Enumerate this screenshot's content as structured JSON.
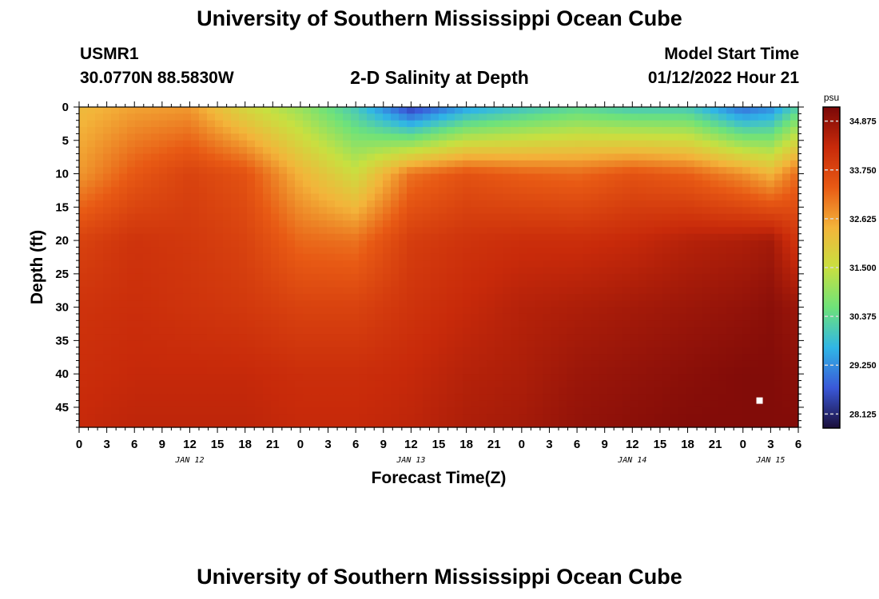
{
  "header": {
    "title": "University of Southern Mississippi Ocean Cube",
    "station_id": "USMR1",
    "coords": "30.0770N  88.5830W",
    "plot_title": "2-D Salinity at Depth",
    "start_label": "Model Start Time",
    "start_value": "01/12/2022 Hour 21"
  },
  "footer": {
    "title": "University of Southern Mississippi Ocean Cube"
  },
  "colors": {
    "scale": [
      "#1a0e3a",
      "#3a58d8",
      "#30b6e6",
      "#6ee27a",
      "#c8e040",
      "#f3b43a",
      "#e85a14",
      "#c82a0a",
      "#7a0808"
    ]
  },
  "chart_data": {
    "type": "heatmap",
    "xlabel": "Forecast Time(Z)",
    "ylabel": "Depth (ft)",
    "xlim": [
      0,
      78
    ],
    "ylim": [
      0,
      48
    ],
    "x_tick_labels": [
      "0",
      "3",
      "6",
      "9",
      "12",
      "15",
      "18",
      "21",
      "0",
      "3",
      "6",
      "9",
      "12",
      "15",
      "18",
      "21",
      "0",
      "3",
      "6",
      "9",
      "12",
      "15",
      "18",
      "21",
      "0",
      "3",
      "6"
    ],
    "y_ticks": [
      0,
      5,
      10,
      15,
      20,
      25,
      30,
      35,
      40,
      45
    ],
    "date_labels": [
      {
        "label": "JAN 12",
        "x": 12
      },
      {
        "label": "JAN 13",
        "x": 36
      },
      {
        "label": "JAN 14",
        "x": 60
      },
      {
        "label": "JAN 15",
        "x": 75
      }
    ],
    "colorbar": {
      "unit": "psu",
      "min": 27.8,
      "max": 35.2,
      "ticks": [
        "34.875",
        "33.750",
        "32.625",
        "31.500",
        "30.375",
        "29.250",
        "28.125"
      ]
    },
    "depths": [
      0,
      10,
      20,
      30,
      40,
      48
    ],
    "times": [
      0,
      6,
      12,
      18,
      24,
      30,
      36,
      42,
      48,
      54,
      60,
      66,
      72,
      75,
      78
    ],
    "salinity": [
      [
        32.3,
        32.6,
        32.7,
        31.7,
        31.0,
        30.0,
        28.4,
        29.4,
        29.9,
        30.3,
        30.0,
        30.0,
        28.9,
        29.2,
        30.2
      ],
      [
        32.7,
        33.4,
        33.8,
        33.5,
        32.4,
        31.6,
        33.1,
        33.5,
        33.3,
        33.2,
        33.5,
        33.3,
        32.8,
        32.4,
        33.2
      ],
      [
        33.8,
        34.1,
        34.0,
        33.8,
        33.2,
        33.1,
        33.9,
        34.1,
        34.2,
        34.2,
        34.3,
        34.5,
        34.6,
        34.7,
        34.0
      ],
      [
        34.1,
        34.2,
        34.1,
        34.0,
        33.8,
        33.8,
        34.1,
        34.3,
        34.5,
        34.6,
        34.7,
        34.8,
        34.9,
        35.0,
        34.8
      ],
      [
        34.2,
        34.3,
        34.3,
        34.3,
        34.2,
        34.2,
        34.3,
        34.5,
        34.6,
        34.8,
        34.9,
        35.0,
        35.1,
        35.1,
        35.0
      ],
      [
        34.3,
        34.4,
        34.4,
        34.4,
        34.3,
        34.3,
        34.4,
        34.6,
        34.7,
        34.9,
        35.0,
        35.1,
        35.1,
        35.1,
        35.1
      ]
    ],
    "marker": {
      "x": 73.8,
      "y": 44
    }
  }
}
